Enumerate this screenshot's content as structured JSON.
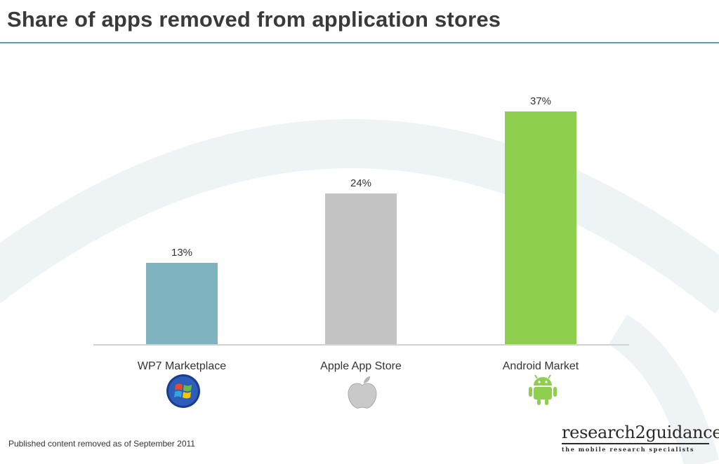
{
  "header": {
    "title": "Share of apps removed from application stores"
  },
  "footnote": "Published content removed as of September 2011",
  "brand": {
    "name": "research2guidance",
    "tagline": "the mobile research specialists"
  },
  "colors": {
    "wp7": "#7eb3bf",
    "apple": "#c4c4c4",
    "android": "#8fcf4f",
    "rule": "#5f9fb3"
  },
  "icons": [
    "windows-logo-icon",
    "apple-logo-icon",
    "android-logo-icon"
  ],
  "chart_data": {
    "type": "bar",
    "title": "Share of apps removed from application stores",
    "categories": [
      "WP7 Marketplace",
      "Apple App Store",
      "Android Market"
    ],
    "values": [
      13,
      24,
      37
    ],
    "value_labels": [
      "13%",
      "24%",
      "37%"
    ],
    "ylim": [
      0,
      40
    ],
    "grid": false,
    "legend": "none"
  }
}
